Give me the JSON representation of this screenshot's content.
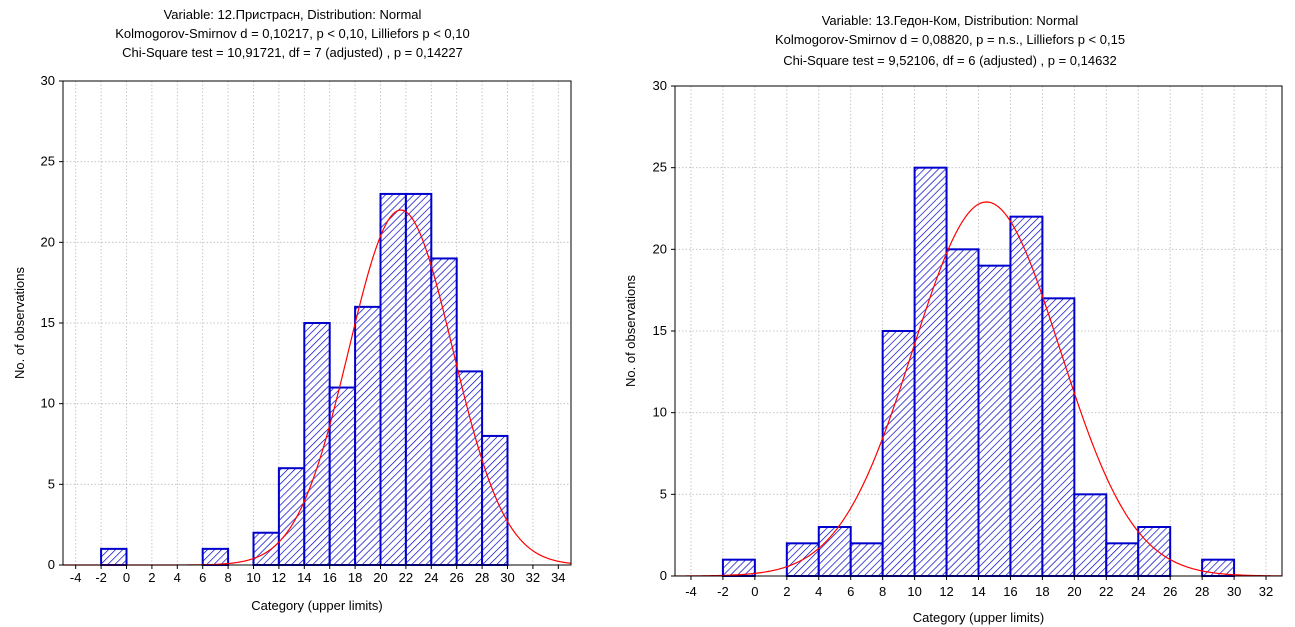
{
  "chart_data": [
    {
      "type": "bar",
      "title_lines": [
        "Variable: 12.Пристрасн, Distribution: Normal",
        "Kolmogorov-Smirnov d = 0,10217, p < 0,10, Lilliefors p < 0,10",
        "Chi-Square test = 10,91721, df = 7 (adjusted) , p = 0,14227"
      ],
      "xlabel": "Category (upper limits)",
      "ylabel": "No. of observations",
      "xlim": [
        -5,
        35
      ],
      "ylim": [
        0,
        30
      ],
      "x_ticks": [
        -4,
        -2,
        0,
        2,
        4,
        6,
        8,
        10,
        12,
        14,
        16,
        18,
        20,
        22,
        24,
        26,
        28,
        30,
        32,
        34
      ],
      "y_ticks": [
        0,
        5,
        10,
        15,
        20,
        25,
        30
      ],
      "bin_width": 2,
      "bins": [
        {
          "upper": 0,
          "count": 1
        },
        {
          "upper": 8,
          "count": 1
        },
        {
          "upper": 12,
          "count": 2
        },
        {
          "upper": 14,
          "count": 6
        },
        {
          "upper": 16,
          "count": 15
        },
        {
          "upper": 18,
          "count": 11
        },
        {
          "upper": 20,
          "count": 16
        },
        {
          "upper": 22,
          "count": 23
        },
        {
          "upper": 24,
          "count": 23
        },
        {
          "upper": 26,
          "count": 19
        },
        {
          "upper": 28,
          "count": 12
        },
        {
          "upper": 30,
          "count": 8
        }
      ],
      "normal_curve": {
        "mean": 21.6,
        "peak": 22,
        "sd": 4.1
      },
      "grid": true,
      "bar_color": "#0000cc",
      "curve_color": "#ff0000"
    },
    {
      "type": "bar",
      "title_lines": [
        "Variable: 13.Гедон-Ком, Distribution: Normal",
        "Kolmogorov-Smirnov d = 0,08820, p = n.s., Lilliefors p < 0,15",
        "Chi-Square test = 9,52106, df = 6 (adjusted) , p = 0,14632"
      ],
      "xlabel": "Category (upper limits)",
      "ylabel": "No. of observations",
      "xlim": [
        -5,
        33
      ],
      "ylim": [
        0,
        30
      ],
      "x_ticks": [
        -4,
        -2,
        0,
        2,
        4,
        6,
        8,
        10,
        12,
        14,
        16,
        18,
        20,
        22,
        24,
        26,
        28,
        30,
        32
      ],
      "y_ticks": [
        0,
        5,
        10,
        15,
        20,
        25,
        30
      ],
      "bin_width": 2,
      "bins": [
        {
          "upper": 0,
          "count": 1
        },
        {
          "upper": 4,
          "count": 2
        },
        {
          "upper": 6,
          "count": 3
        },
        {
          "upper": 8,
          "count": 2
        },
        {
          "upper": 10,
          "count": 15
        },
        {
          "upper": 12,
          "count": 25
        },
        {
          "upper": 14,
          "count": 20
        },
        {
          "upper": 16,
          "count": 19
        },
        {
          "upper": 18,
          "count": 22
        },
        {
          "upper": 20,
          "count": 17
        },
        {
          "upper": 22,
          "count": 5
        },
        {
          "upper": 24,
          "count": 2
        },
        {
          "upper": 26,
          "count": 3
        },
        {
          "upper": 30,
          "count": 1
        }
      ],
      "normal_curve": {
        "mean": 14.5,
        "peak": 22.9,
        "sd": 4.6
      },
      "grid": true,
      "bar_color": "#0000cc",
      "curve_color": "#ff0000"
    }
  ]
}
